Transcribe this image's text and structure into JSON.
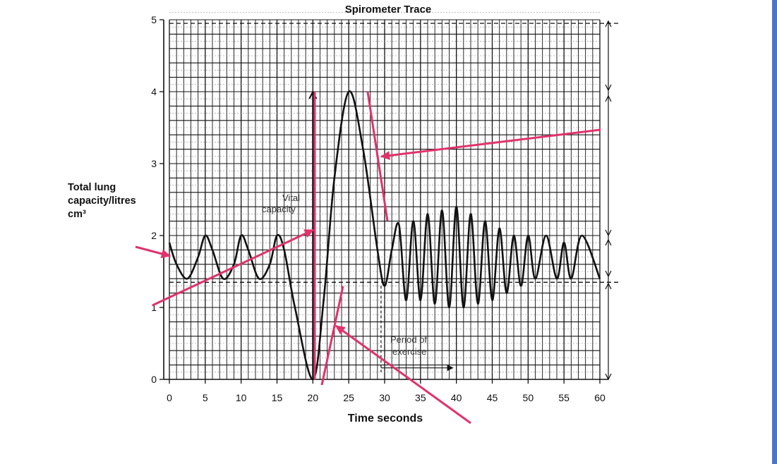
{
  "chart_data": {
    "type": "line",
    "title": "Spirometer Trace",
    "xlabel": "Time seconds",
    "ylabel_lines": [
      "Total lung",
      "capacity/litres",
      "cm³"
    ],
    "xlim": [
      0,
      60
    ],
    "ylim": [
      0,
      5
    ],
    "x_ticks": [
      "0",
      "5",
      "10",
      "15",
      "20",
      "25",
      "30",
      "35",
      "40",
      "45",
      "50",
      "55",
      "60"
    ],
    "y_ticks": [
      "0",
      "1",
      "2",
      "3",
      "4",
      "5"
    ],
    "grid": true,
    "series": [
      {
        "x": [
          0,
          1,
          2.5,
          4,
          5,
          6,
          7.5,
          9,
          10,
          11,
          12.5,
          14,
          15,
          16,
          17.5,
          20,
          21.5,
          23,
          25,
          27,
          29,
          30,
          31,
          32,
          33,
          34,
          35,
          36,
          37,
          38,
          39,
          40,
          41,
          42,
          43,
          44,
          45,
          46,
          47,
          48,
          49,
          50,
          51,
          52.5,
          54,
          55,
          56,
          57.5,
          60
        ],
        "y": [
          1.9,
          1.6,
          1.4,
          1.7,
          2.0,
          1.8,
          1.4,
          1.6,
          2.0,
          1.8,
          1.4,
          1.6,
          2.0,
          1.8,
          1.0,
          0.0,
          1.1,
          2.8,
          4.0,
          3.2,
          1.8,
          1.3,
          1.8,
          2.15,
          1.1,
          2.2,
          1.1,
          2.3,
          1.05,
          2.35,
          1.0,
          2.4,
          1.0,
          2.3,
          1.05,
          2.2,
          1.1,
          2.1,
          1.2,
          2.0,
          1.3,
          2.0,
          1.4,
          2.0,
          1.4,
          1.9,
          1.4,
          2.0,
          1.4
        ]
      }
    ],
    "annotations": {
      "vital_capacity": "Vital capacity",
      "period_of_exercise": "Period of exercise"
    },
    "reference_lines_y": [
      1.35,
      4.95
    ]
  },
  "colors": {
    "trace": "#111111",
    "grid": "#111111",
    "arrows": "#e0336b",
    "accent_bar": "#4a76c9"
  }
}
